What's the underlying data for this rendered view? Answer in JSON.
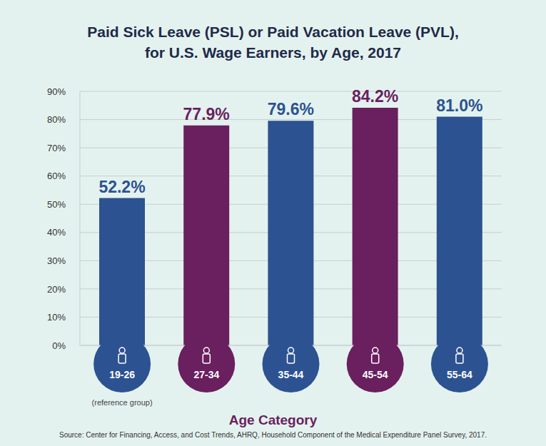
{
  "chart_data": {
    "type": "bar",
    "title": "Paid Sick Leave (PSL) or Paid Vacation Leave (PVL),\nfor U.S. Wage Earners, by Age, 2017",
    "categories": [
      "19-26",
      "27-34",
      "35-44",
      "45-54",
      "55-64"
    ],
    "values": [
      52.2,
      77.9,
      79.6,
      84.2,
      81.0
    ],
    "value_labels": [
      "52.2%",
      "77.9%",
      "79.6%",
      "84.2%",
      "81.0%"
    ],
    "colors": [
      "#2d5291",
      "#6a1f5f",
      "#2d5291",
      "#6a1f5f",
      "#2d5291"
    ],
    "data_labels": true,
    "x_label": "Age Category",
    "ylim": [
      0,
      90
    ],
    "yticks": [
      {
        "value": 0,
        "label": "0%"
      },
      {
        "value": 10,
        "label": "10%"
      },
      {
        "value": 20,
        "label": "20%"
      },
      {
        "value": 30,
        "label": "30%"
      },
      {
        "value": 40,
        "label": "40%"
      },
      {
        "value": 50,
        "label": "50%"
      },
      {
        "value": 60,
        "label": "60%"
      },
      {
        "value": 70,
        "label": "70%"
      },
      {
        "value": 80,
        "label": "80%"
      },
      {
        "value": 90,
        "label": "90%"
      }
    ],
    "grid": true,
    "annotations": [
      {
        "category": "19-26",
        "text": "(reference group)"
      }
    ],
    "source": "Source: Center for Financing, Access, and Cost Trends, AHRQ, Household Component of the Medical Expenditure Panel Survey, 2017."
  }
}
